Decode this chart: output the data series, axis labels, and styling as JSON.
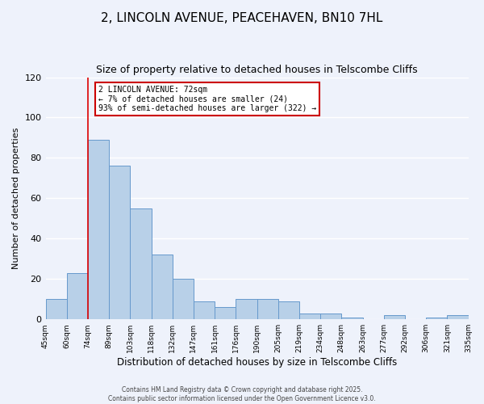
{
  "title": "2, LINCOLN AVENUE, PEACEHAVEN, BN10 7HL",
  "subtitle": "Size of property relative to detached houses in Telscombe Cliffs",
  "xlabel": "Distribution of detached houses by size in Telscombe Cliffs",
  "ylabel": "Number of detached properties",
  "bar_values": [
    10,
    23,
    89,
    76,
    55,
    32,
    20,
    9,
    6,
    10,
    10,
    9,
    3,
    3,
    1,
    0,
    2,
    0,
    1,
    2
  ],
  "categories": [
    "45sqm",
    "60sqm",
    "74sqm",
    "89sqm",
    "103sqm",
    "118sqm",
    "132sqm",
    "147sqm",
    "161sqm",
    "176sqm",
    "190sqm",
    "205sqm",
    "219sqm",
    "234sqm",
    "248sqm",
    "263sqm",
    "277sqm",
    "292sqm",
    "306sqm",
    "321sqm",
    "335sqm"
  ],
  "bar_color": "#b8d0e8",
  "bar_edge_color": "#6699cc",
  "property_line_color": "#dd0000",
  "ylim": [
    0,
    120
  ],
  "yticks": [
    0,
    20,
    40,
    60,
    80,
    100,
    120
  ],
  "annotation_title": "2 LINCOLN AVENUE: 72sqm",
  "annotation_line1": "← 7% of detached houses are smaller (24)",
  "annotation_line2": "93% of semi-detached houses are larger (322) →",
  "annotation_box_color": "#ffffff",
  "annotation_box_edge": "#cc0000",
  "footer1": "Contains HM Land Registry data © Crown copyright and database right 2025.",
  "footer2": "Contains public sector information licensed under the Open Government Licence v3.0.",
  "bg_color": "#eef2fb",
  "grid_color": "#ffffff",
  "title_fontsize": 11,
  "subtitle_fontsize": 9
}
